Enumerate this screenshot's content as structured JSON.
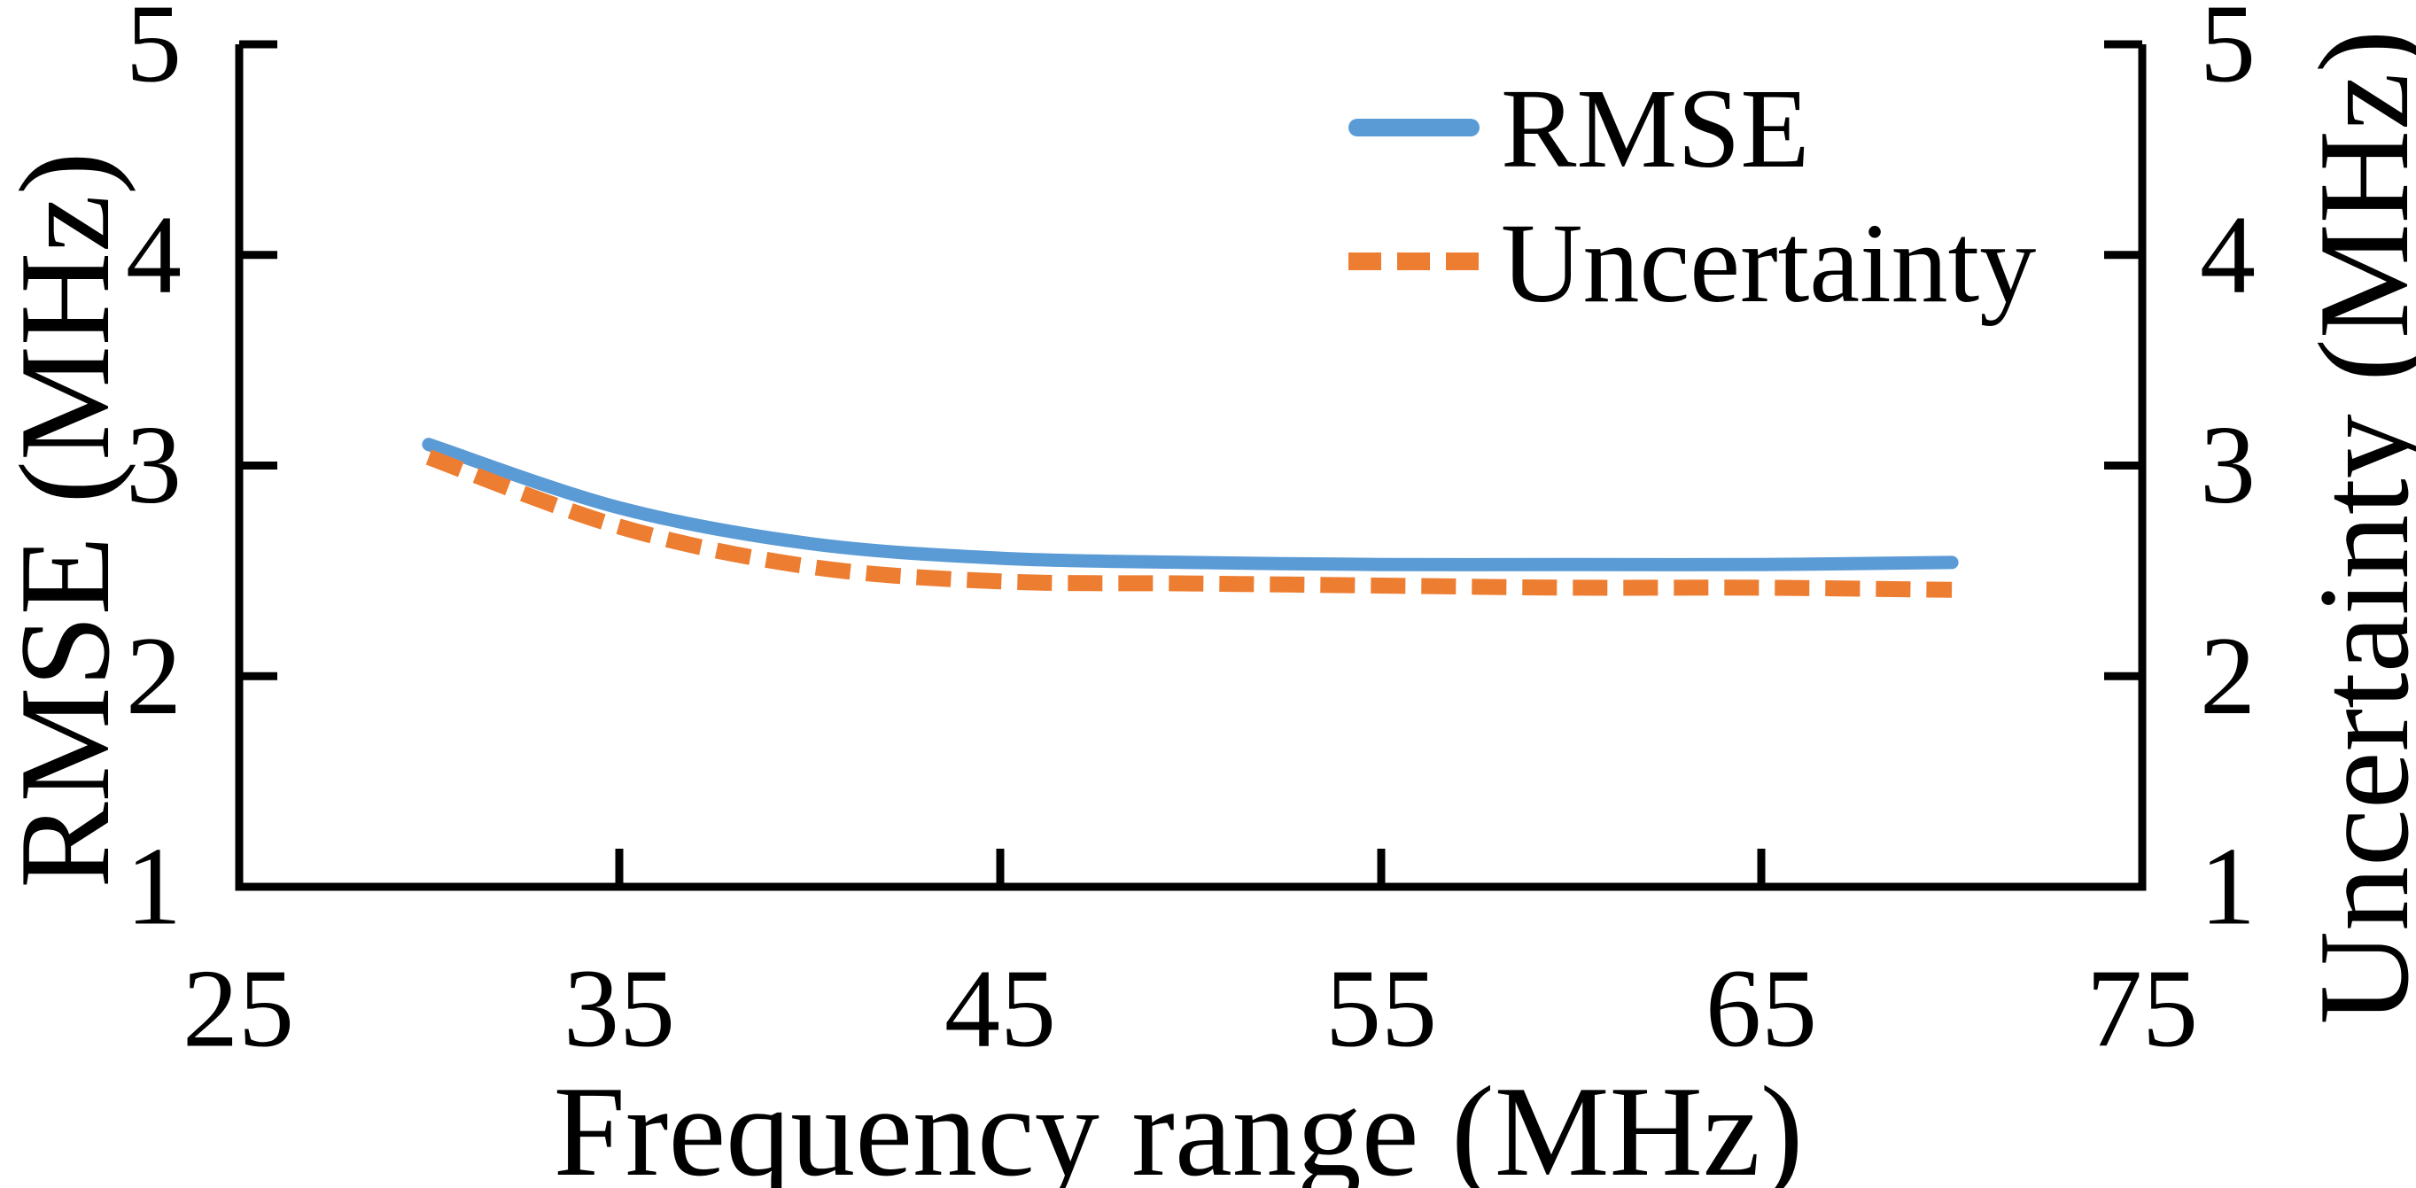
{
  "figure": {
    "background": "#ffffff",
    "axis_color": "#000000"
  },
  "axes": {
    "x": {
      "title": "Frequency range (MHz)",
      "ticks": [
        "25",
        "35",
        "45",
        "55",
        "65",
        "75"
      ]
    },
    "y_left": {
      "title": "RMSE (MHz)",
      "ticks": [
        "5",
        "4",
        "3",
        "2",
        "1"
      ]
    },
    "y_right": {
      "title": "Uncertainty (MHz)",
      "ticks": [
        "5",
        "4",
        "3",
        "2",
        "1"
      ]
    }
  },
  "legend": {
    "items": [
      {
        "label": "RMSE",
        "line_style": "solid",
        "color": "#5B9BD5"
      },
      {
        "label": "Uncertainty",
        "line_style": "dashed",
        "color": "#ED7D31"
      }
    ]
  },
  "chart_data": {
    "type": "line",
    "title": "",
    "xlabel": "Frequency range (MHz)",
    "ylabel_left": "RMSE (MHz)",
    "ylabel_right": "Uncertainty (MHz)",
    "xlim": [
      25,
      75
    ],
    "ylim": [
      1,
      5
    ],
    "xticks": [
      25,
      35,
      45,
      55,
      65,
      75
    ],
    "yticks": [
      1,
      2,
      3,
      4,
      5
    ],
    "grid": false,
    "legend_position": "upper-right-inside",
    "x": [
      30,
      35,
      40,
      45,
      50,
      55,
      60,
      65,
      70
    ],
    "series": [
      {
        "name": "RMSE",
        "axis": "left",
        "style": "solid",
        "color": "#5B9BD5",
        "values": [
          3.1,
          2.8,
          2.63,
          2.56,
          2.54,
          2.53,
          2.53,
          2.53,
          2.54
        ]
      },
      {
        "name": "Uncertainty",
        "axis": "right",
        "style": "dashed",
        "color": "#ED7D31",
        "values": [
          3.04,
          2.71,
          2.52,
          2.45,
          2.44,
          2.43,
          2.42,
          2.42,
          2.41
        ]
      }
    ]
  }
}
